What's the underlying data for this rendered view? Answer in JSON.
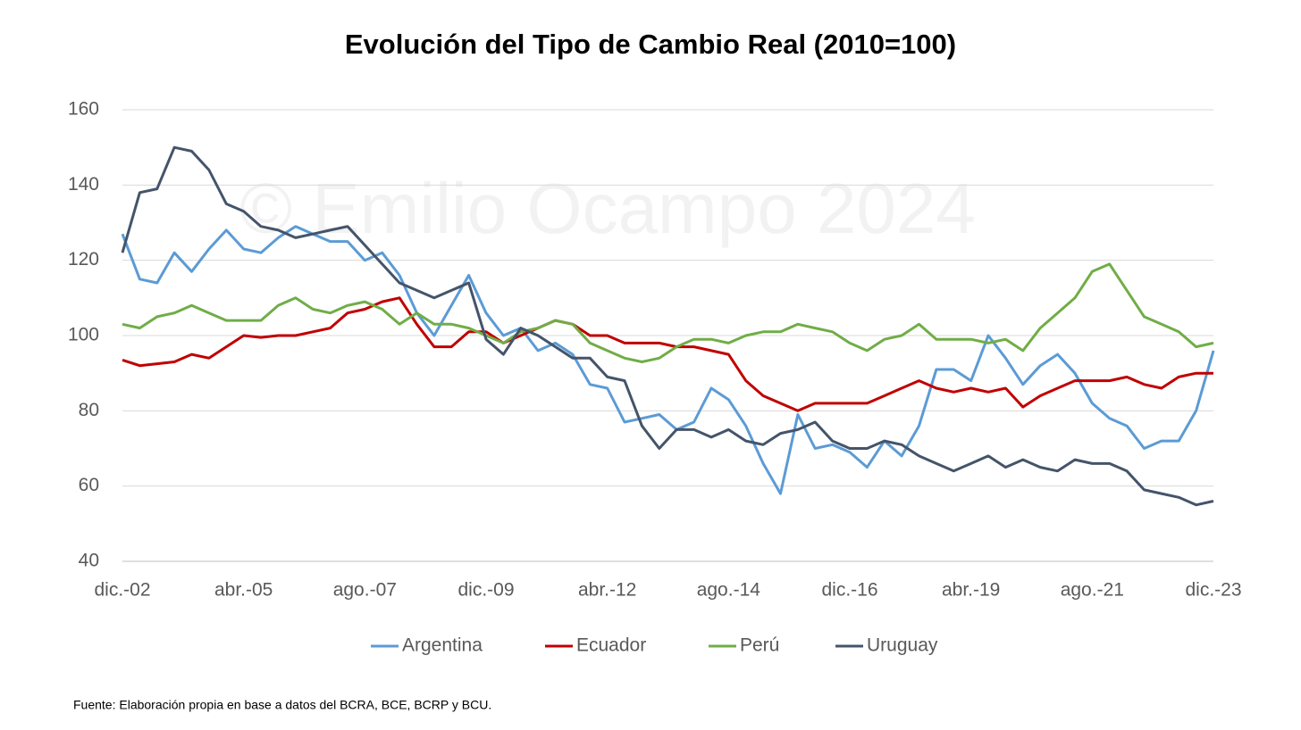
{
  "chart_data": {
    "type": "line",
    "title": "Evolución del Tipo de Cambio Real (2010=100)",
    "watermark": "© Emilio Ocampo 2024",
    "source": "Fuente: Elaboración propia en base a datos del BCRA, BCE, BCRP y BCU.",
    "categories": [
      "dic.-02",
      null,
      null,
      null,
      null,
      null,
      null,
      "abr.-05",
      null,
      null,
      null,
      null,
      null,
      null,
      "ago.-07",
      null,
      null,
      null,
      null,
      null,
      null,
      "dic.-09",
      null,
      null,
      null,
      null,
      null,
      null,
      "abr.-12",
      null,
      null,
      null,
      null,
      null,
      null,
      "ago.-14",
      null,
      null,
      null,
      null,
      null,
      null,
      "dic.-16",
      null,
      null,
      null,
      null,
      null,
      null,
      "abr.-19",
      null,
      null,
      null,
      null,
      null,
      null,
      "ago.-21",
      null,
      null,
      null,
      null,
      null,
      null,
      "dic.-23"
    ],
    "series": [
      {
        "name": "Argentina",
        "color": "#5b9bd5",
        "values": [
          127,
          115,
          114,
          122,
          117,
          123,
          128,
          123,
          122,
          126,
          129,
          127,
          125,
          125,
          120,
          122,
          116,
          106,
          100,
          108,
          116,
          106,
          100,
          102,
          96,
          98,
          95,
          87,
          86,
          77,
          78,
          79,
          75,
          77,
          86,
          83,
          76,
          66,
          58,
          79,
          70,
          71,
          69,
          65,
          72,
          68,
          76,
          91,
          91,
          88,
          100,
          94,
          87,
          92,
          95,
          90,
          82,
          78,
          76,
          70,
          72,
          72,
          80,
          96
        ]
      },
      {
        "name": "Ecuador",
        "color": "#c00000",
        "values": [
          93.5,
          92,
          92.5,
          93,
          95,
          94,
          97,
          100,
          99.5,
          100,
          100,
          101,
          102,
          106,
          107,
          109,
          110,
          103,
          97,
          97,
          101,
          101,
          98,
          100,
          102,
          104,
          103,
          100,
          100,
          98,
          98,
          98,
          97,
          97,
          96,
          95,
          88,
          84,
          82,
          80,
          82,
          82,
          82,
          82,
          84,
          86,
          88,
          86,
          85,
          86,
          85,
          86,
          81,
          84,
          86,
          88,
          88,
          88,
          89,
          87,
          86,
          89,
          90,
          90
        ]
      },
      {
        "name": "Perú",
        "color": "#70ad47",
        "values": [
          103,
          102,
          105,
          106,
          108,
          106,
          104,
          104,
          104,
          108,
          110,
          107,
          106,
          108,
          109,
          107,
          103,
          106,
          103,
          103,
          102,
          100,
          98,
          101,
          102,
          104,
          103,
          98,
          96,
          94,
          93,
          94,
          97,
          99,
          99,
          98,
          100,
          101,
          101,
          103,
          102,
          101,
          98,
          96,
          99,
          100,
          103,
          99,
          99,
          99,
          98,
          99,
          96,
          102,
          106,
          110,
          117,
          119,
          112,
          105,
          103,
          101,
          97,
          98
        ]
      },
      {
        "name": "Uruguay",
        "color": "#44546a",
        "values": [
          122,
          138,
          139,
          150,
          149,
          144,
          135,
          133,
          129,
          128,
          126,
          127,
          128,
          129,
          124,
          119,
          114,
          112,
          110,
          112,
          114,
          99,
          95,
          102,
          100,
          97,
          94,
          94,
          89,
          88,
          76,
          70,
          75,
          75,
          73,
          75,
          72,
          71,
          74,
          75,
          77,
          72,
          70,
          70,
          72,
          71,
          68,
          66,
          64,
          66,
          68,
          65,
          67,
          65,
          64,
          67,
          66,
          66,
          64,
          59,
          58,
          57,
          55,
          56
        ]
      }
    ],
    "ylim": [
      40,
      160
    ],
    "yticks": [
      40,
      60,
      80,
      100,
      120,
      140,
      160
    ],
    "grid": true,
    "legend": "bottom"
  }
}
